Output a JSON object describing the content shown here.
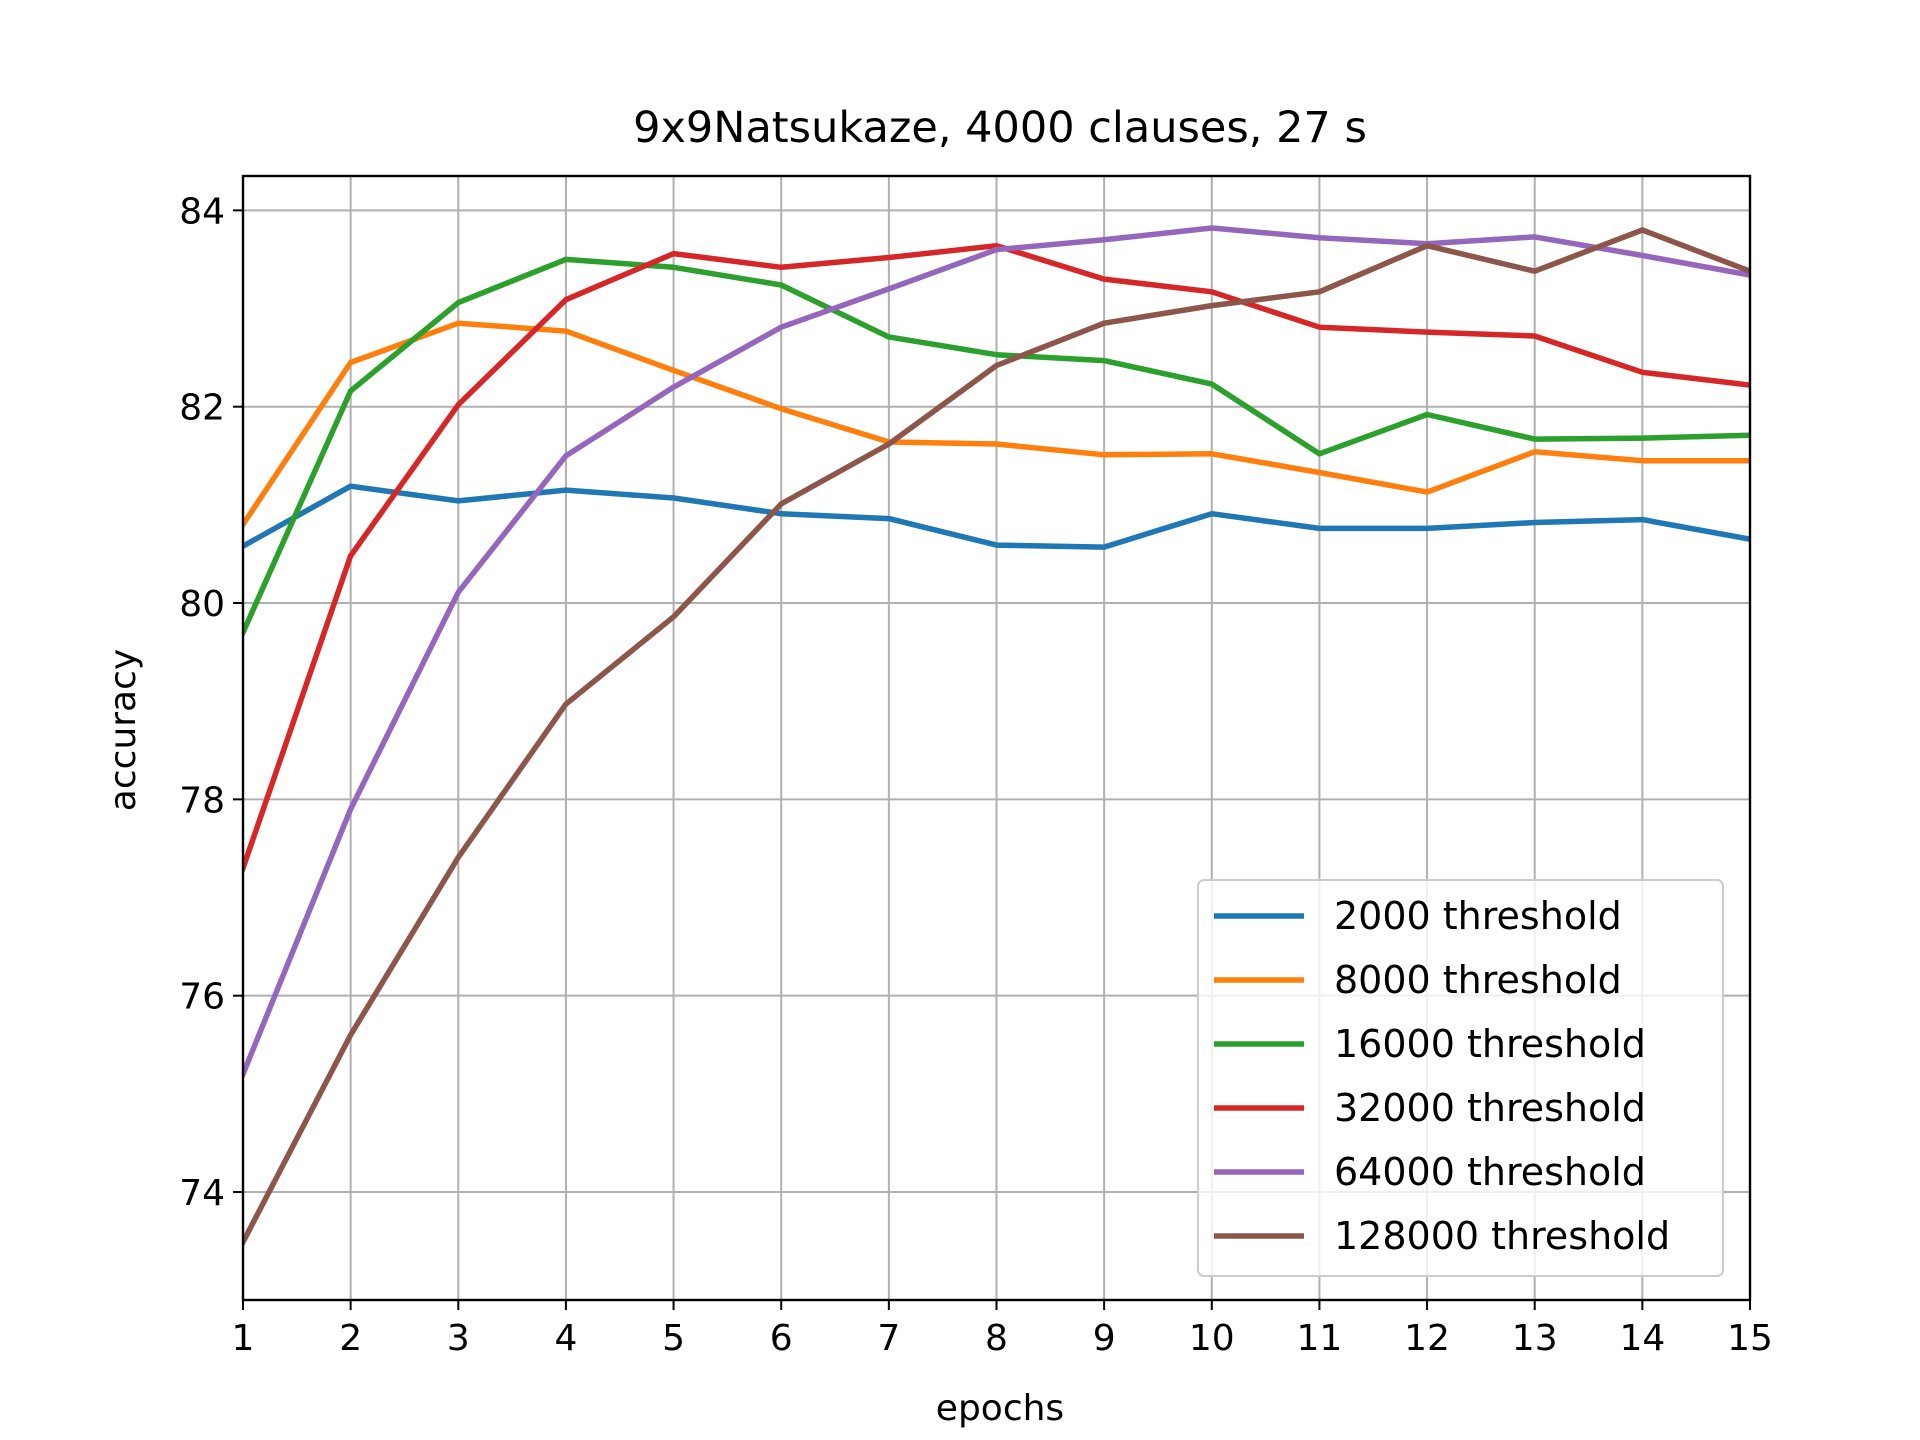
{
  "chart_data": {
    "type": "line",
    "title": "9x9Natsukaze, 4000 clauses, 27 s",
    "xlabel": "epochs",
    "ylabel": "accuracy",
    "xlim": [
      1,
      15
    ],
    "ylim": [
      72.9,
      84.35
    ],
    "xticks": [
      1,
      2,
      3,
      4,
      5,
      6,
      7,
      8,
      9,
      10,
      11,
      12,
      13,
      14,
      15
    ],
    "yticks": [
      74,
      76,
      78,
      80,
      82,
      84
    ],
    "grid": true,
    "legend_position": "lower-right",
    "x": [
      1,
      2,
      3,
      4,
      5,
      6,
      7,
      8,
      9,
      10,
      11,
      12,
      13,
      14,
      15
    ],
    "series": [
      {
        "name": "2000 threshold",
        "color": "#1f77b4",
        "values": [
          80.58,
          81.19,
          81.04,
          81.15,
          81.07,
          80.91,
          80.86,
          80.59,
          80.57,
          80.91,
          80.76,
          80.76,
          80.82,
          80.85,
          80.65
        ]
      },
      {
        "name": "8000 threshold",
        "color": "#ff7f0e",
        "values": [
          80.8,
          82.45,
          82.85,
          82.77,
          82.37,
          81.98,
          81.64,
          81.62,
          81.51,
          81.52,
          81.33,
          81.13,
          81.54,
          81.45,
          81.45
        ]
      },
      {
        "name": "16000 threshold",
        "color": "#2ca02c",
        "values": [
          79.7,
          82.16,
          83.06,
          83.5,
          83.42,
          83.24,
          82.71,
          82.53,
          82.47,
          82.23,
          81.52,
          81.92,
          81.67,
          81.68,
          81.71
        ]
      },
      {
        "name": "32000 threshold",
        "color": "#d62728",
        "values": [
          77.3,
          80.48,
          82.02,
          83.09,
          83.56,
          83.42,
          83.52,
          83.64,
          83.3,
          83.17,
          82.81,
          82.76,
          82.72,
          82.35,
          82.22
        ]
      },
      {
        "name": "64000 threshold",
        "color": "#9467bd",
        "values": [
          75.2,
          77.9,
          80.11,
          81.5,
          82.2,
          82.81,
          83.2,
          83.6,
          83.7,
          83.82,
          83.72,
          83.66,
          83.73,
          83.54,
          83.34
        ]
      },
      {
        "name": "128000 threshold",
        "color": "#8c564b",
        "values": [
          73.49,
          75.6,
          77.41,
          78.97,
          79.86,
          81.01,
          81.62,
          82.42,
          82.85,
          83.03,
          83.17,
          83.64,
          83.38,
          83.8,
          83.38
        ]
      }
    ]
  }
}
